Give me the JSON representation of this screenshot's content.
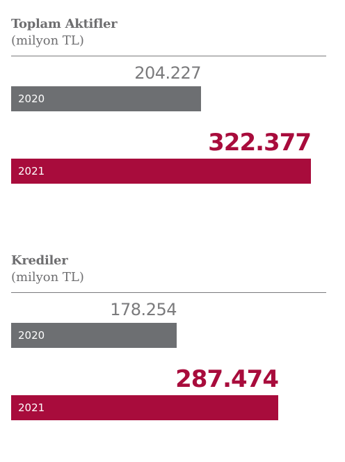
{
  "colors": {
    "bar_2020": "#6d6f72",
    "bar_2021": "#a80c3c",
    "text_gray": "#6e6e70"
  },
  "chart_data": [
    {
      "type": "bar",
      "orientation": "horizontal",
      "title": "Toplam Aktifler",
      "unit": "(milyon TL)",
      "categories": [
        "2020",
        "2021"
      ],
      "values": [
        204227,
        322377
      ],
      "value_labels": [
        "204.227",
        "322.377"
      ],
      "grid": false
    },
    {
      "type": "bar",
      "orientation": "horizontal",
      "title": "Krediler",
      "unit": "(milyon TL)",
      "categories": [
        "2020",
        "2021"
      ],
      "values": [
        178254,
        287474
      ],
      "value_labels": [
        "178.254",
        "287.474"
      ],
      "grid": false
    }
  ]
}
